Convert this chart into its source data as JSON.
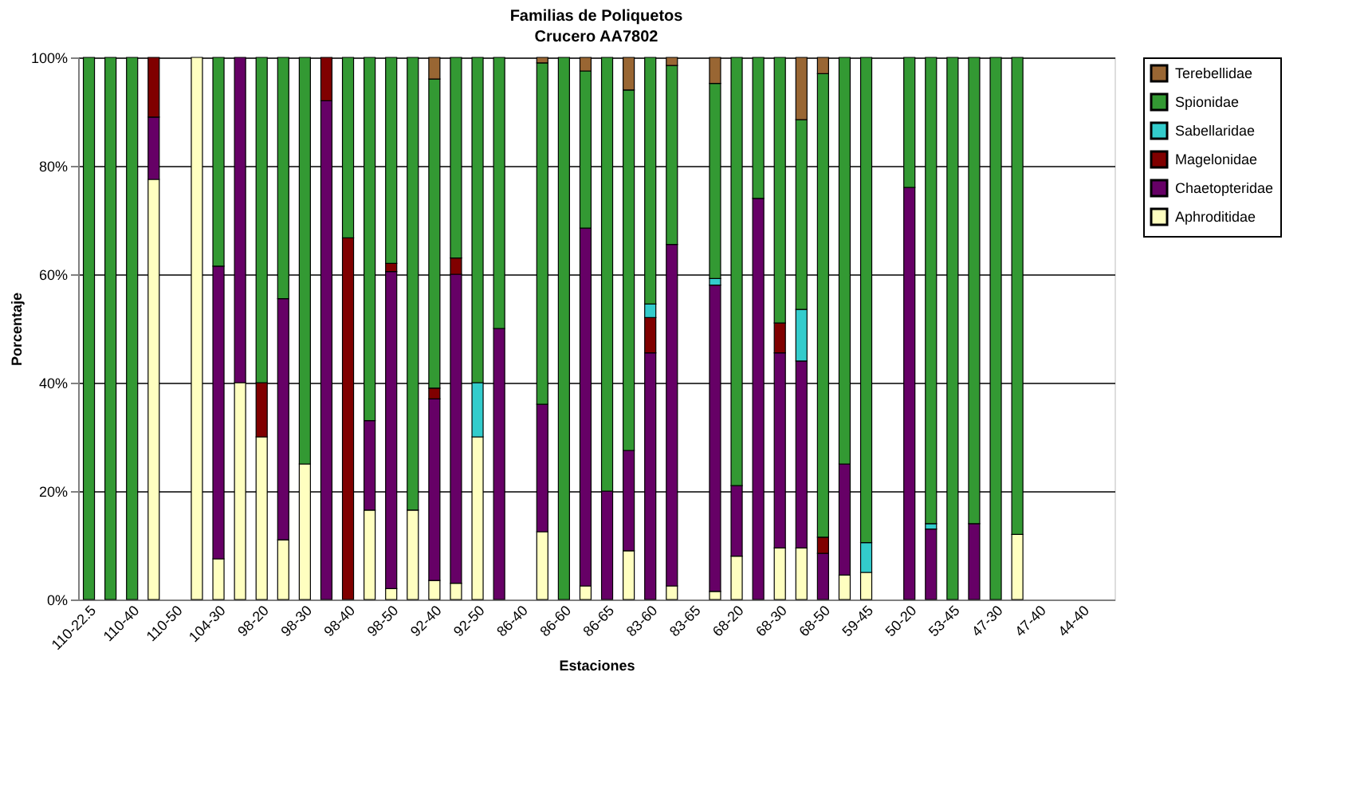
{
  "chart_data": {
    "type": "bar",
    "title": "Familias de Poliquetos",
    "subtitle": "Crucero AA7802",
    "xlabel": "Estaciones",
    "ylabel": "Porcentaje",
    "categories": [
      "110-22.5",
      null,
      "110-40",
      null,
      "110-50",
      null,
      "104-30",
      null,
      "98-20",
      null,
      "98-30",
      null,
      "98-40",
      null,
      "98-50",
      null,
      "92-40",
      null,
      "92-50",
      null,
      "86-40",
      null,
      "86-60",
      null,
      "86-65",
      null,
      "83-60",
      null,
      "83-65",
      null,
      "68-20",
      null,
      "68-30",
      null,
      "68-50",
      null,
      "59-45",
      null,
      "50-20",
      null,
      "53-45",
      null,
      "47-30",
      null,
      "47-40",
      null,
      "44-40",
      null
    ],
    "stacked": true,
    "series": [
      {
        "name": "Aphroditidae",
        "color": "#ffffc0",
        "values": [
          null,
          null,
          null,
          77.5,
          null,
          100,
          7.5,
          40,
          30,
          11,
          25,
          null,
          null,
          16.5,
          2,
          16.5,
          3.5,
          3,
          30,
          null,
          null,
          12.5,
          null,
          2.5,
          null,
          9,
          null,
          2.5,
          null,
          1.5,
          8,
          null,
          9.5,
          9.5,
          null,
          4.5,
          5,
          null,
          null,
          null,
          null,
          null,
          null,
          12,
          null,
          null,
          null,
          null
        ]
      },
      {
        "name": "Chaetopteridae",
        "color": "#660066",
        "values": [
          null,
          null,
          null,
          11.5,
          null,
          null,
          54,
          60,
          null,
          44.5,
          null,
          92,
          null,
          16.5,
          58.5,
          null,
          33.5,
          57,
          null,
          50,
          null,
          23.5,
          null,
          66,
          20,
          18.5,
          45.5,
          63,
          null,
          56.5,
          13,
          74,
          36,
          34.5,
          8.5,
          20.5,
          null,
          null,
          76,
          13,
          null,
          14,
          null,
          null,
          null,
          null,
          null,
          null
        ]
      },
      {
        "name": "Magelonidae",
        "color": "#800000",
        "values": [
          null,
          null,
          null,
          11,
          null,
          null,
          null,
          null,
          10,
          null,
          null,
          8,
          66.7,
          null,
          1.5,
          null,
          2,
          3,
          null,
          null,
          null,
          null,
          null,
          null,
          null,
          null,
          6.5,
          null,
          null,
          null,
          null,
          null,
          5.5,
          null,
          3,
          null,
          null,
          null,
          null,
          null,
          null,
          null,
          null,
          null,
          null,
          null,
          null,
          null
        ]
      },
      {
        "name": "Sabellaridae",
        "color": "#33cccc",
        "values": [
          null,
          null,
          null,
          null,
          null,
          null,
          null,
          null,
          null,
          null,
          null,
          null,
          null,
          null,
          null,
          null,
          null,
          null,
          10,
          null,
          null,
          null,
          null,
          null,
          null,
          null,
          2.5,
          null,
          null,
          1.2,
          null,
          null,
          null,
          9.5,
          null,
          null,
          5.5,
          null,
          null,
          1,
          null,
          null,
          null,
          null,
          null,
          null,
          null,
          null
        ]
      },
      {
        "name": "Spionidae",
        "color": "#339933",
        "values": [
          100,
          100,
          100,
          null,
          null,
          null,
          38.5,
          null,
          60,
          44.5,
          75,
          null,
          33.3,
          67,
          38,
          83.5,
          57,
          37,
          60,
          50,
          null,
          63,
          100,
          29,
          80,
          66.5,
          45.5,
          33,
          null,
          36,
          79,
          26,
          49,
          35,
          85.5,
          75,
          89.5,
          null,
          24,
          86,
          100,
          86,
          100,
          88,
          null,
          null,
          null,
          null
        ]
      },
      {
        "name": "Terebellidae",
        "color": "#996633",
        "values": [
          null,
          null,
          null,
          null,
          null,
          null,
          null,
          null,
          null,
          null,
          null,
          null,
          null,
          null,
          null,
          null,
          4,
          null,
          null,
          null,
          null,
          1,
          null,
          2.5,
          null,
          6,
          null,
          1.5,
          null,
          4.8,
          null,
          null,
          null,
          11.5,
          3,
          null,
          null,
          null,
          null,
          null,
          null,
          null,
          null,
          null,
          null,
          null,
          null,
          null
        ]
      }
    ],
    "ylim": [
      0,
      100
    ],
    "yticks": [
      {
        "value": 0,
        "label": "0%"
      },
      {
        "value": 20,
        "label": "20%"
      },
      {
        "value": 40,
        "label": "40%"
      },
      {
        "value": 60,
        "label": "60%"
      },
      {
        "value": 80,
        "label": "80%"
      },
      {
        "value": 100,
        "label": "100%"
      }
    ],
    "grid": "y",
    "legend": "right"
  }
}
